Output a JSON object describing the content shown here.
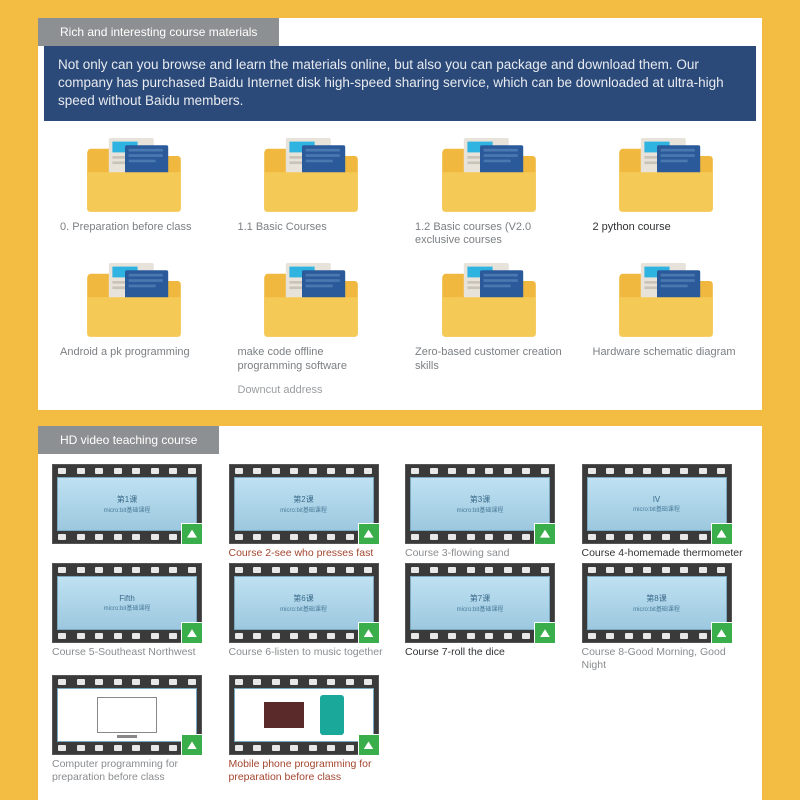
{
  "section1": {
    "header": "Rich and interesting course materials",
    "banner": "Not only can you browse and learn the materials online, but also you can package and download them. Our company has purchased Baidu Internet disk high-speed sharing service, which can be downloaded at ultra-high speed without Baidu members.",
    "folders": [
      {
        "label": "0. Preparation before class",
        "dark": false,
        "sub": ""
      },
      {
        "label": "1.1 Basic Courses",
        "dark": false,
        "sub": ""
      },
      {
        "label": "1.2 Basic courses (V2.0 exclusive courses",
        "dark": false,
        "sub": ""
      },
      {
        "label": "2 python course",
        "dark": true,
        "sub": ""
      },
      {
        "label": "Android a pk programming",
        "dark": false,
        "sub": ""
      },
      {
        "label": "make code offline programming software",
        "dark": false,
        "sub": "Downcut address"
      },
      {
        "label": "Zero-based customer creation skills",
        "dark": false,
        "sub": ""
      },
      {
        "label": "Hardware schematic diagram",
        "dark": false,
        "sub": ""
      }
    ],
    "folder_colors": {
      "back": "#f0b83e",
      "front": "#f5c956",
      "doc": "#e8e3da",
      "doc_accent1": "#2fb3e0",
      "doc_accent2": "#2a5a9a"
    }
  },
  "section2": {
    "header": "HD video teaching course",
    "videos": [
      {
        "label": "",
        "slide": "第1课",
        "style": ""
      },
      {
        "label": "Course 2-see who presses fast",
        "slide": "第2课",
        "style": "red"
      },
      {
        "label": "Course 3-flowing sand",
        "slide": "第3课",
        "style": ""
      },
      {
        "label": "Course 4-homemade thermometer",
        "slide": "IV",
        "style": "dark"
      },
      {
        "label": "Course 5-Southeast Northwest",
        "slide": "Fifth",
        "style": ""
      },
      {
        "label": "Course 6-listen to music together",
        "slide": "第6课",
        "style": ""
      },
      {
        "label": "Course 7-roll the dice",
        "slide": "第7课",
        "style": "dark"
      },
      {
        "label": "Course 8-Good Morning, Good Night",
        "slide": "第8课",
        "style": ""
      },
      {
        "label": "Computer programming for preparation before class",
        "slide": "monitor",
        "style": "",
        "special": "monitor"
      },
      {
        "label": "Mobile phone programming for preparation before class",
        "slide": "phone",
        "style": "red",
        "special": "phone"
      }
    ]
  }
}
